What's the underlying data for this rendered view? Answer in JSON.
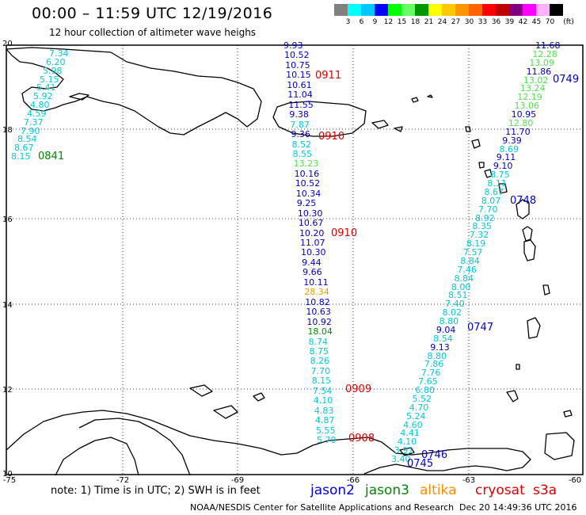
{
  "header": {
    "title": "00:00 – 11:59 UTC 12/19/2016",
    "subtitle": "12 hour collection of altimeter wave heighs"
  },
  "colorbar": {
    "unit": "(ft)",
    "labels": [
      "3",
      "6",
      "9",
      "12",
      "15",
      "18",
      "21",
      "24",
      "27",
      "30",
      "33",
      "36",
      "39",
      "42",
      "45",
      "70"
    ],
    "colors": [
      "#808080",
      "#00ffff",
      "#00c8ff",
      "#0000ff",
      "#00ff00",
      "#64ff64",
      "#009600",
      "#ffff00",
      "#ffc800",
      "#ff9600",
      "#ff6400",
      "#ff0000",
      "#c00000",
      "#800080",
      "#ff00ff",
      "#ffb0ff",
      "#000000"
    ]
  },
  "axes": {
    "lat_labels": [
      "20",
      "18",
      "16",
      "14",
      "12",
      "10"
    ],
    "lon_labels": [
      "-75",
      "-72",
      "-69",
      "-66",
      "-63",
      "-60"
    ]
  },
  "legend": {
    "note": "note: 1) Time is in UTC; 2) SWH is in feet",
    "jason2": "jason2",
    "jason3": "jason3",
    "altika": "altika",
    "cryosat": "cryosat",
    "s3a": "s3a",
    "colors": {
      "jason2": "#0000dd",
      "jason3": "#008800",
      "altika": "#ff8c00",
      "cryosat": "#dd0000",
      "s3a": "#dd0000"
    }
  },
  "footer": {
    "credit": "NOAA/NESDIS Center for Satellite Applications and Research",
    "timestamp": "Dec 20 14:49:36 UTC 2016"
  },
  "tracks": {
    "left": {
      "time": "0841",
      "time_color": "#008800",
      "values": [
        {
          "v": "7.34",
          "c": "#00c8e0"
        },
        {
          "v": "6.20",
          "c": "#00c8e0"
        },
        {
          "v": "5.98",
          "c": "#00c8e0"
        },
        {
          "v": "5.15",
          "c": "#00c8e0"
        },
        {
          "v": "5.41",
          "c": "#00c8e0"
        },
        {
          "v": "5.92",
          "c": "#00c8e0"
        },
        {
          "v": "4.80",
          "c": "#00c8e0"
        },
        {
          "v": "4.59",
          "c": "#00c8e0"
        },
        {
          "v": "7.37",
          "c": "#00c8e0"
        },
        {
          "v": "7.90",
          "c": "#00c8e0"
        },
        {
          "v": "8.54",
          "c": "#00c8e0"
        },
        {
          "v": "8.67",
          "c": "#00c8e0"
        },
        {
          "v": "8.15",
          "c": "#00c8e0"
        }
      ]
    },
    "middle": {
      "times": [
        {
          "t": "0911",
          "c": "#dd0000"
        },
        {
          "t": "0910",
          "c": "#dd0000"
        },
        {
          "t": "0910",
          "c": "#dd0000"
        },
        {
          "t": "0909",
          "c": "#dd0000"
        },
        {
          "t": "0908",
          "c": "#dd0000"
        }
      ],
      "values": [
        {
          "v": "9.93",
          "c": "#0000c8"
        },
        {
          "v": "10.52",
          "c": "#0000c8"
        },
        {
          "v": "10.75",
          "c": "#0000c8"
        },
        {
          "v": "10.15",
          "c": "#0000c8"
        },
        {
          "v": "10.61",
          "c": "#0000c8"
        },
        {
          "v": "11.04",
          "c": "#0000c8"
        },
        {
          "v": "11.55",
          "c": "#0000c8"
        },
        {
          "v": "9.38",
          "c": "#0000c8"
        },
        {
          "v": "7.87",
          "c": "#00c8e0"
        },
        {
          "v": "9.36",
          "c": "#0000c8"
        },
        {
          "v": "8.52",
          "c": "#00c8e0"
        },
        {
          "v": "8.55",
          "c": "#00c8e0"
        },
        {
          "v": "13.23",
          "c": "#50e050"
        },
        {
          "v": "10.16",
          "c": "#0000c8"
        },
        {
          "v": "10.52",
          "c": "#0000c8"
        },
        {
          "v": "10.34",
          "c": "#0000c8"
        },
        {
          "v": "9.25",
          "c": "#0000c8"
        },
        {
          "v": "10.30",
          "c": "#0000c8"
        },
        {
          "v": "10.67",
          "c": "#0000c8"
        },
        {
          "v": "10.20",
          "c": "#0000c8"
        },
        {
          "v": "11.07",
          "c": "#0000c8"
        },
        {
          "v": "10.30",
          "c": "#0000c8"
        },
        {
          "v": "9.44",
          "c": "#0000c8"
        },
        {
          "v": "9.66",
          "c": "#0000c8"
        },
        {
          "v": "10.11",
          "c": "#0000c8"
        },
        {
          "v": "28.34",
          "c": "#e8a000"
        },
        {
          "v": "10.82",
          "c": "#0000c8"
        },
        {
          "v": "10.63",
          "c": "#0000c8"
        },
        {
          "v": "10.92",
          "c": "#0000c8"
        },
        {
          "v": "18.04",
          "c": "#008800"
        },
        {
          "v": "8.74",
          "c": "#00c8e0"
        },
        {
          "v": "8.75",
          "c": "#00c8e0"
        },
        {
          "v": "8.26",
          "c": "#00c8e0"
        },
        {
          "v": "7.70",
          "c": "#00c8e0"
        },
        {
          "v": "8.15",
          "c": "#00c8e0"
        },
        {
          "v": "7.54",
          "c": "#00c8e0"
        },
        {
          "v": "4.10",
          "c": "#00c8e0"
        },
        {
          "v": "4.83",
          "c": "#00c8e0"
        },
        {
          "v": "4.87",
          "c": "#00c8e0"
        },
        {
          "v": "5.55",
          "c": "#00c8e0"
        },
        {
          "v": "5.70",
          "c": "#00c8e0"
        }
      ]
    },
    "right": {
      "times": [
        {
          "t": "0749",
          "c": "#0000c8"
        },
        {
          "t": "0748",
          "c": "#0000c8"
        },
        {
          "t": "0747",
          "c": "#0000c8"
        },
        {
          "t": "0746",
          "c": "#0000c8"
        },
        {
          "t": "0745",
          "c": "#0000c8"
        }
      ],
      "values": [
        {
          "v": "11.68",
          "c": "#0000c8"
        },
        {
          "v": "12.28",
          "c": "#50e050"
        },
        {
          "v": "13.09",
          "c": "#50e050"
        },
        {
          "v": "11.86",
          "c": "#0000c8"
        },
        {
          "v": "13.02",
          "c": "#50e050"
        },
        {
          "v": "13.24",
          "c": "#50e050"
        },
        {
          "v": "12.19",
          "c": "#50e050"
        },
        {
          "v": "13.06",
          "c": "#50e050"
        },
        {
          "v": "10.95",
          "c": "#0000c8"
        },
        {
          "v": "12.80",
          "c": "#50e050"
        },
        {
          "v": "11.70",
          "c": "#0000c8"
        },
        {
          "v": "9.39",
          "c": "#0000c8"
        },
        {
          "v": "8.69",
          "c": "#00c8e0"
        },
        {
          "v": "9.11",
          "c": "#0000c8"
        },
        {
          "v": "9.10",
          "c": "#0000c8"
        },
        {
          "v": "8.75",
          "c": "#00c8e0"
        },
        {
          "v": "8.11",
          "c": "#00c8e0"
        },
        {
          "v": "8.67",
          "c": "#00c8e0"
        },
        {
          "v": "8.07",
          "c": "#00c8e0"
        },
        {
          "v": "7.70",
          "c": "#00c8e0"
        },
        {
          "v": "8.92",
          "c": "#00c8e0"
        },
        {
          "v": "8.35",
          "c": "#00c8e0"
        },
        {
          "v": "7.32",
          "c": "#00c8e0"
        },
        {
          "v": "8.19",
          "c": "#00c8e0"
        },
        {
          "v": "7.57",
          "c": "#00c8e0"
        },
        {
          "v": "8.84",
          "c": "#00c8e0"
        },
        {
          "v": "7.46",
          "c": "#00c8e0"
        },
        {
          "v": "8.84",
          "c": "#00c8e0"
        },
        {
          "v": "8.00",
          "c": "#00c8e0"
        },
        {
          "v": "8.51",
          "c": "#00c8e0"
        },
        {
          "v": "7.40",
          "c": "#00c8e0"
        },
        {
          "v": "8.02",
          "c": "#00c8e0"
        },
        {
          "v": "8.80",
          "c": "#00c8e0"
        },
        {
          "v": "9.04",
          "c": "#0000c8"
        },
        {
          "v": "8.54",
          "c": "#00c8e0"
        },
        {
          "v": "9.13",
          "c": "#0000c8"
        },
        {
          "v": "8.80",
          "c": "#00c8e0"
        },
        {
          "v": "7.86",
          "c": "#00c8e0"
        },
        {
          "v": "7.76",
          "c": "#00c8e0"
        },
        {
          "v": "7.65",
          "c": "#00c8e0"
        },
        {
          "v": "6.80",
          "c": "#00c8e0"
        },
        {
          "v": "5.52",
          "c": "#00c8e0"
        },
        {
          "v": "4.70",
          "c": "#00c8e0"
        },
        {
          "v": "5.24",
          "c": "#00c8e0"
        },
        {
          "v": "4.60",
          "c": "#00c8e0"
        },
        {
          "v": "4.41",
          "c": "#00c8e0"
        },
        {
          "v": "4.10",
          "c": "#00c8e0"
        },
        {
          "v": "3.91",
          "c": "#00c8e0"
        },
        {
          "v": "3.40",
          "c": "#00c8e0"
        }
      ]
    }
  }
}
